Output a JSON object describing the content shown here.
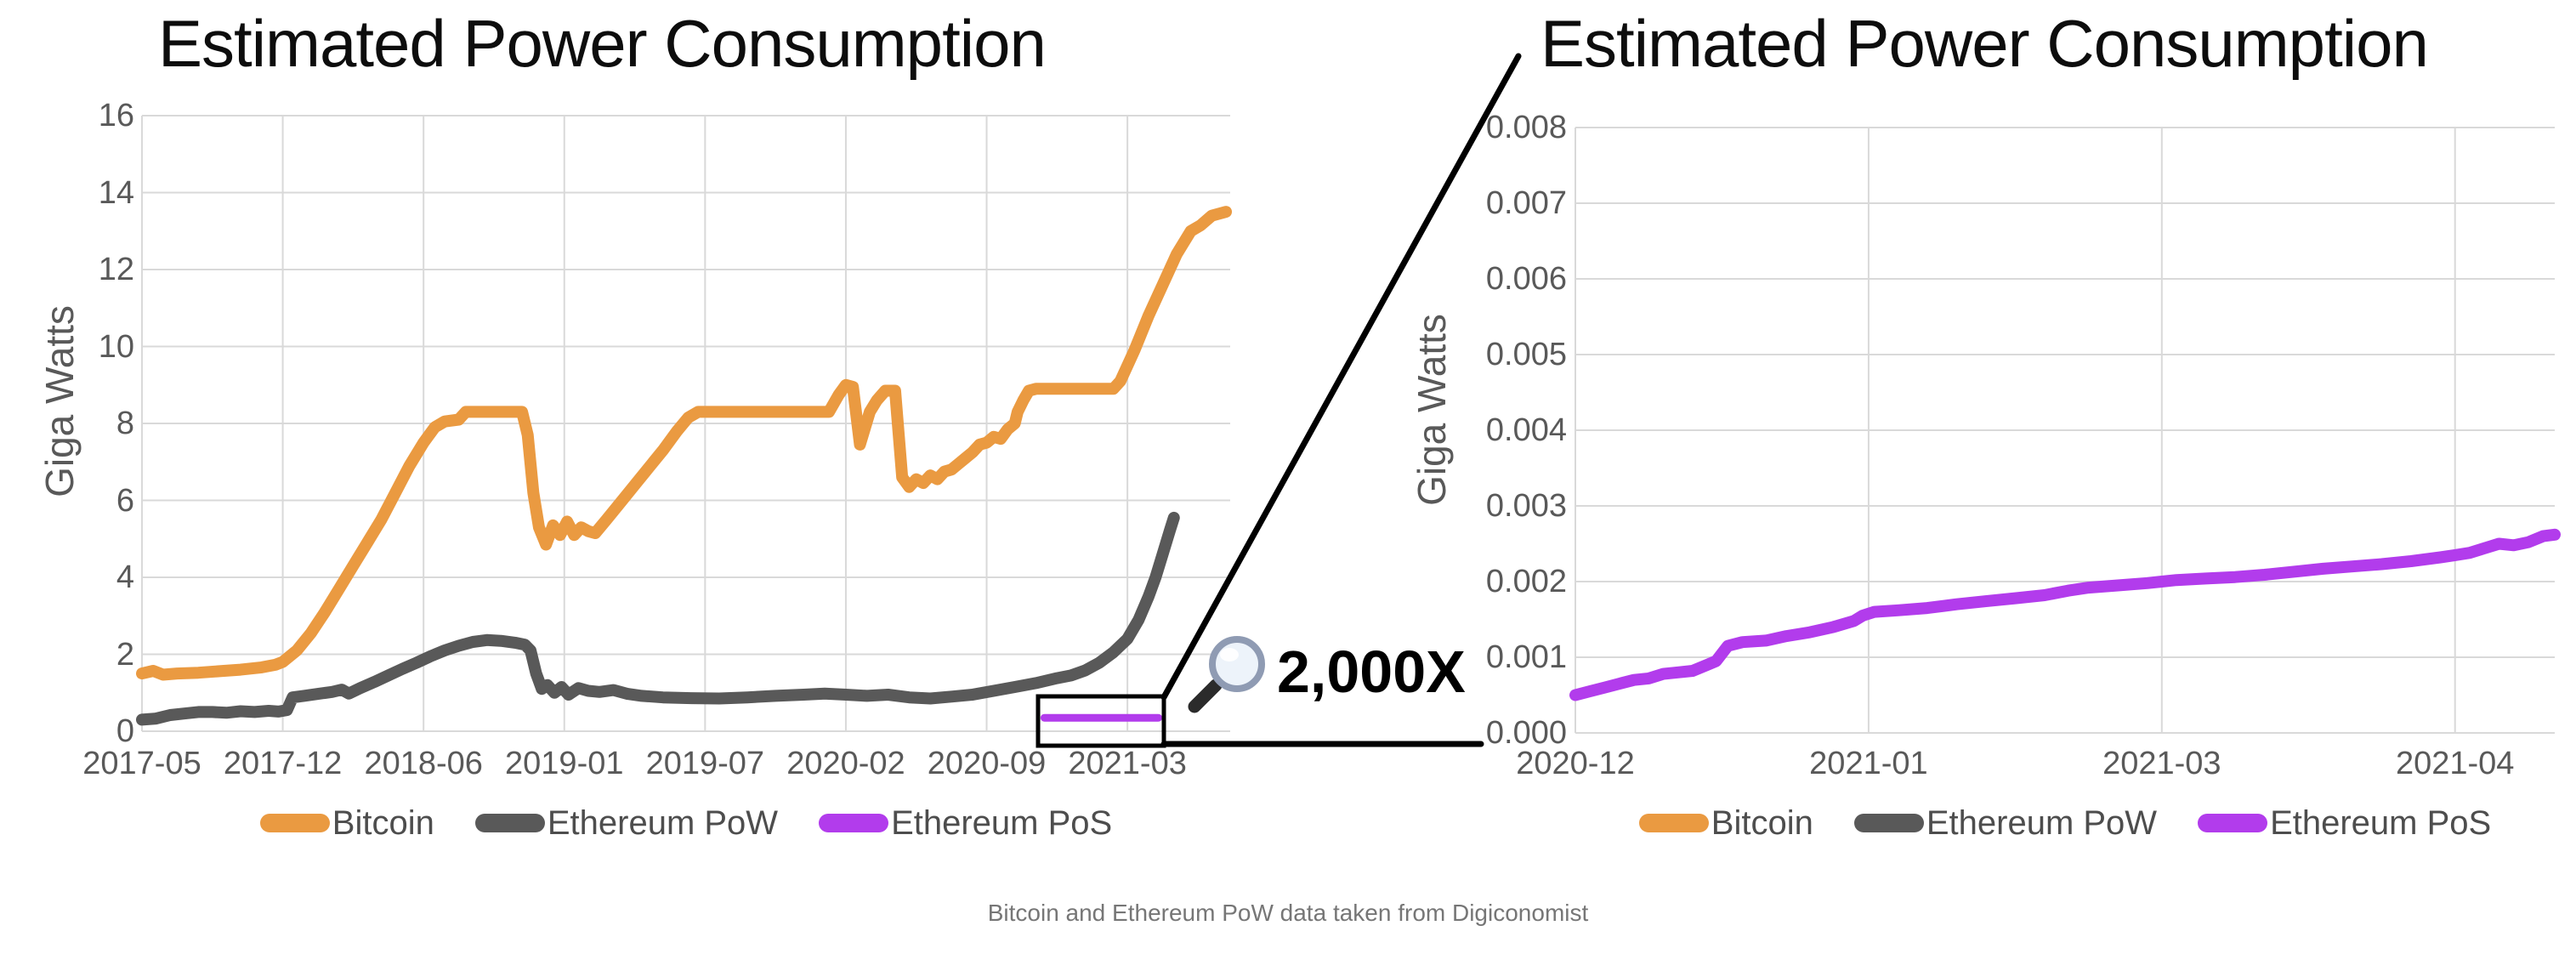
{
  "caption": {
    "text": "Bitcoin and Ethereum PoW data taken from Digiconomist"
  },
  "annotation": {
    "magnification_label": "2,000X",
    "magnifier_icon": "magnifying-glass-icon"
  },
  "colors": {
    "bitcoin": "#EA9A41",
    "ethereum_pow": "#595959",
    "ethereum_pos": "#B23CEC",
    "gridline": "#D9D9D9",
    "tick_text": "#595959",
    "legend_text": "#4D4D4D",
    "title_text": "#0D0D0D",
    "caption_text": "#767676",
    "annotation_black": "#000000"
  },
  "chart_data": [
    {
      "type": "line",
      "title": "Estimated Power Consumption",
      "ylabel": "Giga Watts",
      "xlabel": "",
      "grid": true,
      "legend_position": "bottom",
      "xlim": [
        0,
        7.73
      ],
      "ylim": [
        0,
        16
      ],
      "x_tick_labels": [
        "2017-05",
        "2017-12",
        "2018-06",
        "2019-01",
        "2019-07",
        "2020-02",
        "2020-09",
        "2021-03"
      ],
      "y_tick_values": [
        0,
        2,
        4,
        6,
        8,
        10,
        12,
        14,
        16
      ],
      "y_tick_labels": [
        "0",
        "2",
        "4",
        "6",
        "8",
        "10",
        "12",
        "14",
        "16"
      ],
      "series": [
        {
          "name": "Bitcoin",
          "color": "#EA9A41",
          "stroke_width": 14,
          "points": [
            [
              0,
              1.5
            ],
            [
              0.08,
              1.57
            ],
            [
              0.15,
              1.47
            ],
            [
              0.25,
              1.5
            ],
            [
              0.4,
              1.52
            ],
            [
              0.55,
              1.56
            ],
            [
              0.7,
              1.6
            ],
            [
              0.85,
              1.66
            ],
            [
              0.95,
              1.73
            ],
            [
              1.0,
              1.8
            ],
            [
              1.1,
              2.1
            ],
            [
              1.2,
              2.55
            ],
            [
              1.3,
              3.1
            ],
            [
              1.4,
              3.7
            ],
            [
              1.5,
              4.3
            ],
            [
              1.6,
              4.9
            ],
            [
              1.7,
              5.5
            ],
            [
              1.8,
              6.2
            ],
            [
              1.9,
              6.9
            ],
            [
              2.0,
              7.5
            ],
            [
              2.08,
              7.9
            ],
            [
              2.15,
              8.05
            ],
            [
              2.25,
              8.1
            ],
            [
              2.3,
              8.3
            ],
            [
              2.7,
              8.3
            ],
            [
              2.74,
              7.7
            ],
            [
              2.78,
              6.2
            ],
            [
              2.82,
              5.3
            ],
            [
              2.87,
              4.85
            ],
            [
              2.92,
              5.35
            ],
            [
              2.97,
              5.1
            ],
            [
              3.02,
              5.45
            ],
            [
              3.07,
              5.1
            ],
            [
              3.12,
              5.3
            ],
            [
              3.17,
              5.2
            ],
            [
              3.22,
              5.15
            ],
            [
              3.3,
              5.5
            ],
            [
              3.4,
              5.95
            ],
            [
              3.5,
              6.4
            ],
            [
              3.6,
              6.85
            ],
            [
              3.7,
              7.3
            ],
            [
              3.8,
              7.8
            ],
            [
              3.88,
              8.15
            ],
            [
              3.95,
              8.3
            ],
            [
              4.88,
              8.3
            ],
            [
              4.95,
              8.75
            ],
            [
              5.0,
              9.0
            ],
            [
              5.05,
              8.95
            ],
            [
              5.1,
              7.45
            ],
            [
              5.17,
              8.3
            ],
            [
              5.22,
              8.6
            ],
            [
              5.28,
              8.85
            ],
            [
              5.35,
              8.85
            ],
            [
              5.4,
              6.6
            ],
            [
              5.45,
              6.35
            ],
            [
              5.5,
              6.55
            ],
            [
              5.55,
              6.45
            ],
            [
              5.6,
              6.65
            ],
            [
              5.65,
              6.55
            ],
            [
              5.7,
              6.75
            ],
            [
              5.75,
              6.8
            ],
            [
              5.8,
              6.95
            ],
            [
              5.85,
              7.1
            ],
            [
              5.9,
              7.25
            ],
            [
              5.95,
              7.45
            ],
            [
              6.0,
              7.5
            ],
            [
              6.05,
              7.65
            ],
            [
              6.1,
              7.6
            ],
            [
              6.15,
              7.85
            ],
            [
              6.2,
              8.0
            ],
            [
              6.22,
              8.3
            ],
            [
              6.26,
              8.6
            ],
            [
              6.3,
              8.85
            ],
            [
              6.35,
              8.9
            ],
            [
              6.9,
              8.9
            ],
            [
              6.95,
              9.1
            ],
            [
              7.05,
              9.9
            ],
            [
              7.15,
              10.8
            ],
            [
              7.25,
              11.6
            ],
            [
              7.35,
              12.4
            ],
            [
              7.45,
              13.0
            ],
            [
              7.52,
              13.15
            ],
            [
              7.6,
              13.4
            ],
            [
              7.7,
              13.5
            ]
          ]
        },
        {
          "name": "Ethereum PoW",
          "color": "#595959",
          "stroke_width": 14,
          "points": [
            [
              0,
              0.3
            ],
            [
              0.1,
              0.33
            ],
            [
              0.2,
              0.42
            ],
            [
              0.3,
              0.46
            ],
            [
              0.4,
              0.5
            ],
            [
              0.5,
              0.5
            ],
            [
              0.6,
              0.48
            ],
            [
              0.7,
              0.52
            ],
            [
              0.8,
              0.5
            ],
            [
              0.9,
              0.53
            ],
            [
              0.97,
              0.51
            ],
            [
              1.03,
              0.55
            ],
            [
              1.07,
              0.88
            ],
            [
              1.15,
              0.92
            ],
            [
              1.25,
              0.97
            ],
            [
              1.35,
              1.02
            ],
            [
              1.42,
              1.08
            ],
            [
              1.47,
              0.98
            ],
            [
              1.55,
              1.12
            ],
            [
              1.65,
              1.28
            ],
            [
              1.75,
              1.45
            ],
            [
              1.85,
              1.62
            ],
            [
              1.95,
              1.78
            ],
            [
              2.05,
              1.95
            ],
            [
              2.15,
              2.1
            ],
            [
              2.25,
              2.22
            ],
            [
              2.35,
              2.32
            ],
            [
              2.45,
              2.37
            ],
            [
              2.55,
              2.35
            ],
            [
              2.65,
              2.3
            ],
            [
              2.72,
              2.25
            ],
            [
              2.76,
              2.1
            ],
            [
              2.8,
              1.5
            ],
            [
              2.84,
              1.1
            ],
            [
              2.88,
              1.2
            ],
            [
              2.93,
              1.0
            ],
            [
              2.98,
              1.15
            ],
            [
              3.03,
              0.95
            ],
            [
              3.1,
              1.12
            ],
            [
              3.17,
              1.05
            ],
            [
              3.25,
              1.02
            ],
            [
              3.35,
              1.07
            ],
            [
              3.45,
              0.97
            ],
            [
              3.55,
              0.92
            ],
            [
              3.7,
              0.88
            ],
            [
              3.9,
              0.86
            ],
            [
              4.1,
              0.85
            ],
            [
              4.3,
              0.88
            ],
            [
              4.5,
              0.92
            ],
            [
              4.7,
              0.95
            ],
            [
              4.85,
              0.98
            ],
            [
              5.0,
              0.95
            ],
            [
              5.15,
              0.92
            ],
            [
              5.3,
              0.95
            ],
            [
              5.45,
              0.88
            ],
            [
              5.6,
              0.85
            ],
            [
              5.75,
              0.9
            ],
            [
              5.9,
              0.95
            ],
            [
              6.05,
              1.05
            ],
            [
              6.2,
              1.15
            ],
            [
              6.35,
              1.25
            ],
            [
              6.5,
              1.38
            ],
            [
              6.6,
              1.45
            ],
            [
              6.7,
              1.58
            ],
            [
              6.8,
              1.78
            ],
            [
              6.9,
              2.05
            ],
            [
              7.0,
              2.4
            ],
            [
              7.08,
              2.9
            ],
            [
              7.15,
              3.5
            ],
            [
              7.2,
              4.0
            ],
            [
              7.25,
              4.6
            ],
            [
              7.3,
              5.2
            ],
            [
              7.33,
              5.55
            ]
          ]
        },
        {
          "name": "Ethereum PoS",
          "color": "#B23CEC",
          "stroke_width": 9,
          "points": [
            [
              6.41,
              0.35
            ],
            [
              7.22,
              0.35
            ]
          ]
        }
      ]
    },
    {
      "type": "line",
      "title": "Estimated Power Consumption",
      "ylabel": "Giga Watts",
      "xlabel": "",
      "grid": true,
      "legend_position": "bottom",
      "xlim": [
        0,
        3.34
      ],
      "ylim": [
        0,
        0.008
      ],
      "x_tick_labels": [
        "2020-12",
        "2021-01",
        "2021-03",
        "2021-04"
      ],
      "y_tick_values": [
        0,
        0.001,
        0.002,
        0.003,
        0.004,
        0.005,
        0.006,
        0.007,
        0.008
      ],
      "y_tick_labels": [
        "0.000",
        "0.001",
        "0.002",
        "0.003",
        "0.004",
        "0.005",
        "0.006",
        "0.007",
        "0.008"
      ],
      "series": [
        {
          "name": "Bitcoin",
          "color": "#EA9A41",
          "stroke_width": 14,
          "points": []
        },
        {
          "name": "Ethereum PoW",
          "color": "#595959",
          "stroke_width": 14,
          "points": []
        },
        {
          "name": "Ethereum PoS",
          "color": "#B23CEC",
          "stroke_width": 14,
          "points": [
            [
              0,
              0.0005
            ],
            [
              0.05,
              0.00055
            ],
            [
              0.1,
              0.0006
            ],
            [
              0.15,
              0.00065
            ],
            [
              0.2,
              0.0007
            ],
            [
              0.25,
              0.00072
            ],
            [
              0.3,
              0.00078
            ],
            [
              0.35,
              0.0008
            ],
            [
              0.4,
              0.00082
            ],
            [
              0.45,
              0.0009
            ],
            [
              0.48,
              0.00095
            ],
            [
              0.52,
              0.00115
            ],
            [
              0.57,
              0.0012
            ],
            [
              0.65,
              0.00122
            ],
            [
              0.72,
              0.00128
            ],
            [
              0.8,
              0.00133
            ],
            [
              0.88,
              0.0014
            ],
            [
              0.95,
              0.00148
            ],
            [
              0.98,
              0.00155
            ],
            [
              1.02,
              0.0016
            ],
            [
              1.1,
              0.00162
            ],
            [
              1.2,
              0.00165
            ],
            [
              1.3,
              0.0017
            ],
            [
              1.4,
              0.00174
            ],
            [
              1.5,
              0.00178
            ],
            [
              1.6,
              0.00182
            ],
            [
              1.68,
              0.00188
            ],
            [
              1.75,
              0.00192
            ],
            [
              1.85,
              0.00195
            ],
            [
              1.95,
              0.00198
            ],
            [
              2.05,
              0.00202
            ],
            [
              2.15,
              0.00204
            ],
            [
              2.25,
              0.00206
            ],
            [
              2.35,
              0.00209
            ],
            [
              2.45,
              0.00213
            ],
            [
              2.55,
              0.00217
            ],
            [
              2.65,
              0.0022
            ],
            [
              2.75,
              0.00223
            ],
            [
              2.85,
              0.00227
            ],
            [
              2.95,
              0.00232
            ],
            [
              3.0,
              0.00235
            ],
            [
              3.05,
              0.00238
            ],
            [
              3.1,
              0.00244
            ],
            [
              3.15,
              0.0025
            ],
            [
              3.2,
              0.00248
            ],
            [
              3.25,
              0.00252
            ],
            [
              3.3,
              0.0026
            ],
            [
              3.34,
              0.00262
            ]
          ]
        }
      ]
    }
  ]
}
